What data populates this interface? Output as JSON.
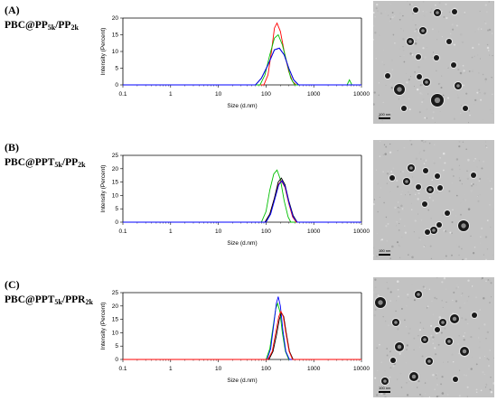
{
  "figure": {
    "panels": [
      {
        "letter": "(A)",
        "sample_parts": [
          "PBC@PP",
          "5k",
          "/PP",
          "2k"
        ],
        "scale_bar": "100 nm"
      },
      {
        "letter": "(B)",
        "sample_parts": [
          "PBC@PPT",
          "5k",
          "/PP",
          "2k"
        ],
        "scale_bar": "100 nm"
      },
      {
        "letter": "(C)",
        "sample_parts": [
          "PBC@PPT",
          "5k",
          "/PPR",
          "2k"
        ],
        "scale_bar": "100 nm"
      }
    ]
  },
  "colors": {
    "red": "#ff0000",
    "green": "#00c000",
    "black": "#000000",
    "blue": "#0000ff"
  },
  "chart_data": [
    {
      "type": "line",
      "xlabel": "Size (d.nm)",
      "ylabel": "Intensity (Percent)",
      "xscale": "log",
      "xlim": [
        0.1,
        10000
      ],
      "ylim": [
        0,
        20
      ],
      "xticks": [
        "0.1",
        "1",
        "10",
        "100",
        "1000",
        "10000"
      ],
      "yticks": [
        "0",
        "5",
        "10",
        "15",
        "20"
      ],
      "series": [
        {
          "color": "red",
          "x": [
            90,
            110,
            130,
            150,
            170,
            200,
            240,
            300,
            360,
            430
          ],
          "y": [
            0,
            3,
            10,
            17,
            18.5,
            16,
            10,
            4,
            1,
            0
          ]
        },
        {
          "color": "green",
          "x": [
            75,
            95,
            120,
            150,
            180,
            220,
            270,
            330,
            400,
            5000,
            5600,
            6300
          ],
          "y": [
            0,
            3,
            9,
            14,
            15,
            12,
            7,
            2,
            0,
            0,
            1.5,
            0
          ]
        },
        {
          "color": "black",
          "x": [
            60,
            80,
            110,
            150,
            190,
            240,
            300,
            380,
            480
          ],
          "y": [
            0,
            2,
            6,
            10.5,
            11,
            9,
            5,
            1.5,
            0
          ]
        },
        {
          "color": "blue",
          "x": [
            60,
            80,
            110,
            150,
            190,
            240,
            300,
            380,
            480
          ],
          "y": [
            0,
            2,
            6,
            10.5,
            11,
            9,
            5,
            1.5,
            0
          ]
        }
      ]
    },
    {
      "type": "line",
      "xlabel": "Size (d.nm)",
      "ylabel": "Intensity (Percent)",
      "xscale": "log",
      "xlim": [
        0.1,
        10000
      ],
      "ylim": [
        0,
        25
      ],
      "xticks": [
        "0.1",
        "1",
        "10",
        "100",
        "1000",
        "10000"
      ],
      "yticks": [
        "0",
        "5",
        "10",
        "15",
        "20",
        "25"
      ],
      "series": [
        {
          "color": "green",
          "x": [
            80,
            100,
            120,
            145,
            170,
            200,
            240,
            290,
            330
          ],
          "y": [
            0,
            4,
            12,
            18,
            19.5,
            16,
            8,
            2,
            0
          ]
        },
        {
          "color": "red",
          "x": [
            95,
            120,
            150,
            180,
            210,
            250,
            300,
            360,
            430
          ],
          "y": [
            0,
            3,
            9,
            14,
            15.5,
            13,
            7,
            2,
            0
          ]
        },
        {
          "color": "black",
          "x": [
            95,
            120,
            150,
            180,
            210,
            250,
            300,
            370,
            450
          ],
          "y": [
            0,
            3,
            9,
            15,
            16.5,
            14,
            8,
            2.5,
            0
          ]
        },
        {
          "color": "blue",
          "x": [
            100,
            125,
            155,
            185,
            215,
            255,
            305,
            370,
            450
          ],
          "y": [
            0,
            3,
            9,
            14,
            15.5,
            13,
            7,
            2,
            0
          ]
        }
      ]
    },
    {
      "type": "line",
      "xlabel": "Size (d.nm)",
      "ylabel": "Intensity (Percent)",
      "xscale": "log",
      "xlim": [
        0.1,
        10000
      ],
      "ylim": [
        0,
        25
      ],
      "xticks": [
        "0.1",
        "1",
        "10",
        "100",
        "1000",
        "10000"
      ],
      "yticks": [
        "0",
        "5",
        "10",
        "15",
        "20",
        "25"
      ],
      "series": [
        {
          "color": "green",
          "x": [
            100,
            120,
            140,
            160,
            175,
            195,
            220,
            255,
            300
          ],
          "y": [
            0,
            4,
            12,
            19,
            21,
            18,
            10,
            3,
            0
          ]
        },
        {
          "color": "blue",
          "x": [
            105,
            125,
            145,
            165,
            180,
            200,
            225,
            260,
            310
          ],
          "y": [
            0,
            4,
            13,
            21,
            23.5,
            20,
            11,
            3,
            0
          ]
        },
        {
          "color": "black",
          "x": [
            115,
            140,
            165,
            190,
            210,
            235,
            265,
            310,
            370
          ],
          "y": [
            0,
            3,
            9,
            15,
            17.5,
            16,
            10,
            3,
            0
          ]
        },
        {
          "color": "red",
          "x": [
            110,
            135,
            160,
            185,
            205,
            230,
            260,
            305,
            360
          ],
          "y": [
            0,
            3,
            10,
            16,
            18,
            16,
            10,
            3,
            0
          ]
        }
      ]
    }
  ]
}
